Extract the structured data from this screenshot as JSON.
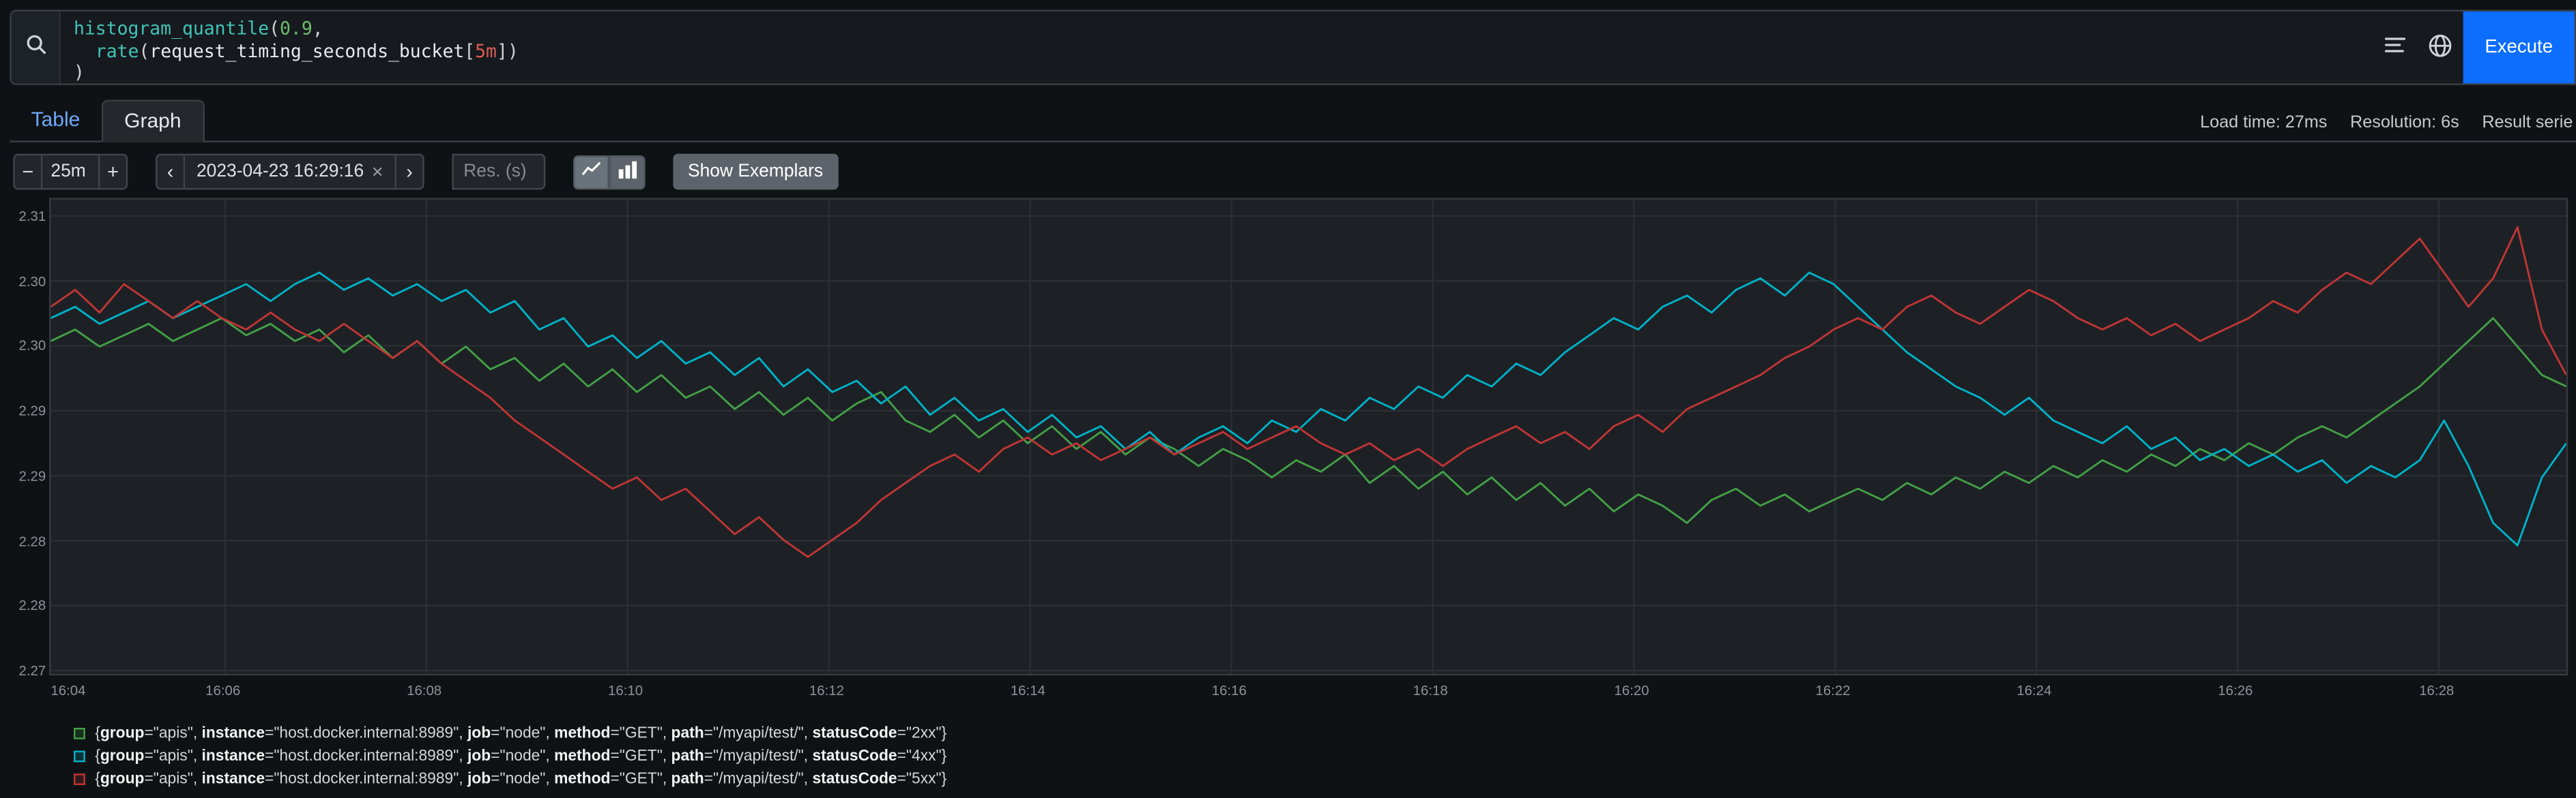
{
  "colors": {
    "accent": "#0d6efd",
    "series_green": "#43a047",
    "series_cyan": "#00b2c8",
    "series_red": "#c03535",
    "plot_background": "#1d2125",
    "grid": "#2a2f34"
  },
  "query": {
    "lines": [
      [
        {
          "t": "histogram_quantile",
          "c": "fn"
        },
        {
          "t": "(",
          "c": "p"
        },
        {
          "t": "0.9",
          "c": "num"
        },
        {
          "t": ",",
          "c": "p"
        }
      ],
      [
        {
          "t": "  ",
          "c": "p"
        },
        {
          "t": "rate",
          "c": "fn"
        },
        {
          "t": "(",
          "c": "p"
        },
        {
          "t": "request_timing_seconds_bucket",
          "c": "metric"
        },
        {
          "t": "[",
          "c": "p"
        },
        {
          "t": "5m",
          "c": "dur"
        },
        {
          "t": "]",
          "c": "p"
        },
        {
          "t": ")",
          "c": "p"
        }
      ],
      [
        {
          "t": ")",
          "c": "p"
        }
      ]
    ],
    "execute_label": "Execute"
  },
  "tabs": {
    "table_label": "Table",
    "graph_label": "Graph"
  },
  "stats": {
    "load_time": "Load time: 27ms",
    "resolution": "Resolution: 6s",
    "result_series": "Result serie"
  },
  "controls": {
    "minus_symbol": "−",
    "plus_symbol": "+",
    "duration_value": "25m",
    "prev_symbol": "‹",
    "next_symbol": "›",
    "datetime_value": "2023-04-23 16:29:16",
    "clear_symbol": "×",
    "res_placeholder": "Res. (s)",
    "show_exemplars_label": "Show Exemplars"
  },
  "chart_data": {
    "type": "line",
    "title": "",
    "xlabel": "",
    "ylabel": "",
    "ylim": [
      2.27,
      2.31
    ],
    "ytick_labels": [
      "2.31",
      "2.30",
      "2.30",
      "2.29",
      "2.29",
      "2.28",
      "2.28",
      "2.27"
    ],
    "xtick_labels": [
      "16:04",
      "16:06",
      "16:08",
      "16:10",
      "16:12",
      "16:14",
      "16:16",
      "16:18",
      "16:20",
      "16:22",
      "16:24",
      "16:26",
      "16:28"
    ],
    "x_tick_interval_seconds": 120,
    "x_first_tick_offset_seconds": -16,
    "x_range_seconds": 1500,
    "grid": true,
    "legend_position": "bottom",
    "series": [
      {
        "name": "2xx",
        "color": "#43a047",
        "values": [
          2.299,
          2.3,
          2.2985,
          2.2995,
          2.3005,
          2.299,
          2.3,
          2.301,
          2.2995,
          2.3005,
          2.299,
          2.3,
          2.298,
          2.2995,
          2.2975,
          2.299,
          2.297,
          2.2985,
          2.2965,
          2.2975,
          2.2955,
          2.297,
          2.295,
          2.2965,
          2.2945,
          2.296,
          2.294,
          2.295,
          2.293,
          2.2945,
          2.2925,
          2.294,
          2.292,
          2.2935,
          2.2945,
          2.292,
          2.291,
          2.2925,
          2.2905,
          2.292,
          2.29,
          2.2915,
          2.2895,
          2.291,
          2.289,
          2.2905,
          2.2895,
          2.288,
          2.2895,
          2.2885,
          2.287,
          2.2885,
          2.2875,
          2.289,
          2.2865,
          2.288,
          2.286,
          2.2875,
          2.2855,
          2.287,
          2.285,
          2.2865,
          2.2845,
          2.286,
          2.284,
          2.2855,
          2.2845,
          2.283,
          2.285,
          2.286,
          2.2845,
          2.2855,
          2.284,
          2.285,
          2.286,
          2.285,
          2.2865,
          2.2855,
          2.287,
          2.286,
          2.2875,
          2.2865,
          2.288,
          2.287,
          2.2885,
          2.2875,
          2.289,
          2.288,
          2.2895,
          2.2885,
          2.29,
          2.289,
          2.2905,
          2.2915,
          2.2905,
          2.292,
          2.2935,
          2.295,
          2.297,
          2.299,
          2.301,
          2.2985,
          2.296,
          2.295
        ]
      },
      {
        "name": "4xx",
        "color": "#00b2c8",
        "values": [
          2.301,
          2.302,
          2.3005,
          2.3015,
          2.3025,
          2.301,
          2.302,
          2.303,
          2.304,
          2.3025,
          2.304,
          2.305,
          2.3035,
          2.3045,
          2.303,
          2.304,
          2.3025,
          2.3035,
          2.3015,
          2.3025,
          2.3,
          2.301,
          2.2985,
          2.2995,
          2.2975,
          2.299,
          2.297,
          2.298,
          2.296,
          2.2975,
          2.295,
          2.2965,
          2.2945,
          2.2955,
          2.2935,
          2.295,
          2.2925,
          2.294,
          2.292,
          2.293,
          2.291,
          2.2925,
          2.2905,
          2.2915,
          2.2895,
          2.291,
          2.289,
          2.2905,
          2.2915,
          2.29,
          2.292,
          2.291,
          2.293,
          2.292,
          2.294,
          2.293,
          2.295,
          2.294,
          2.296,
          2.295,
          2.297,
          2.296,
          2.298,
          2.2995,
          2.301,
          2.3,
          2.302,
          2.303,
          2.3015,
          2.3035,
          2.3045,
          2.303,
          2.305,
          2.304,
          2.302,
          2.3,
          2.298,
          2.2965,
          2.295,
          2.294,
          2.2925,
          2.294,
          2.292,
          2.291,
          2.29,
          2.2915,
          2.2895,
          2.2905,
          2.2885,
          2.2895,
          2.288,
          2.289,
          2.2875,
          2.2885,
          2.2865,
          2.288,
          2.287,
          2.2885,
          2.292,
          2.288,
          2.283,
          2.281,
          2.287,
          2.29
        ]
      },
      {
        "name": "5xx",
        "color": "#c03535",
        "values": [
          2.302,
          2.3035,
          2.3015,
          2.304,
          2.3025,
          2.301,
          2.3025,
          2.301,
          2.3,
          2.3015,
          2.3,
          2.299,
          2.3005,
          2.299,
          2.2975,
          2.299,
          2.297,
          2.2955,
          2.294,
          2.292,
          2.2905,
          2.289,
          2.2875,
          2.286,
          2.287,
          2.285,
          2.286,
          2.284,
          2.282,
          2.2835,
          2.2815,
          2.28,
          2.2815,
          2.283,
          2.285,
          2.2865,
          2.288,
          2.289,
          2.2875,
          2.2895,
          2.2905,
          2.289,
          2.29,
          2.2885,
          2.2895,
          2.2905,
          2.289,
          2.29,
          2.291,
          2.2895,
          2.2905,
          2.2915,
          2.29,
          2.289,
          2.29,
          2.2885,
          2.2895,
          2.288,
          2.2895,
          2.2905,
          2.2915,
          2.29,
          2.291,
          2.2895,
          2.2915,
          2.2925,
          2.291,
          2.293,
          2.294,
          2.295,
          2.296,
          2.2975,
          2.2985,
          2.3,
          2.301,
          2.3,
          2.302,
          2.303,
          2.3015,
          2.3005,
          2.302,
          2.3035,
          2.3025,
          2.301,
          2.3,
          2.301,
          2.2995,
          2.3005,
          2.299,
          2.3,
          2.301,
          2.3025,
          2.3015,
          2.3035,
          2.305,
          2.304,
          2.306,
          2.308,
          2.305,
          2.302,
          2.3045,
          2.309,
          2.3,
          2.296
        ]
      }
    ]
  },
  "legend": [
    {
      "color": "#43a047",
      "labels": [
        [
          "group",
          "apis"
        ],
        [
          "instance",
          "host.docker.internal:8989"
        ],
        [
          "job",
          "node"
        ],
        [
          "method",
          "GET"
        ],
        [
          "path",
          "/myapi/test/"
        ],
        [
          "statusCode",
          "2xx"
        ]
      ]
    },
    {
      "color": "#00b2c8",
      "labels": [
        [
          "group",
          "apis"
        ],
        [
          "instance",
          "host.docker.internal:8989"
        ],
        [
          "job",
          "node"
        ],
        [
          "method",
          "GET"
        ],
        [
          "path",
          "/myapi/test/"
        ],
        [
          "statusCode",
          "4xx"
        ]
      ]
    },
    {
      "color": "#c03535",
      "labels": [
        [
          "group",
          "apis"
        ],
        [
          "instance",
          "host.docker.internal:8989"
        ],
        [
          "job",
          "node"
        ],
        [
          "method",
          "GET"
        ],
        [
          "path",
          "/myapi/test/"
        ],
        [
          "statusCode",
          "5xx"
        ]
      ]
    }
  ]
}
